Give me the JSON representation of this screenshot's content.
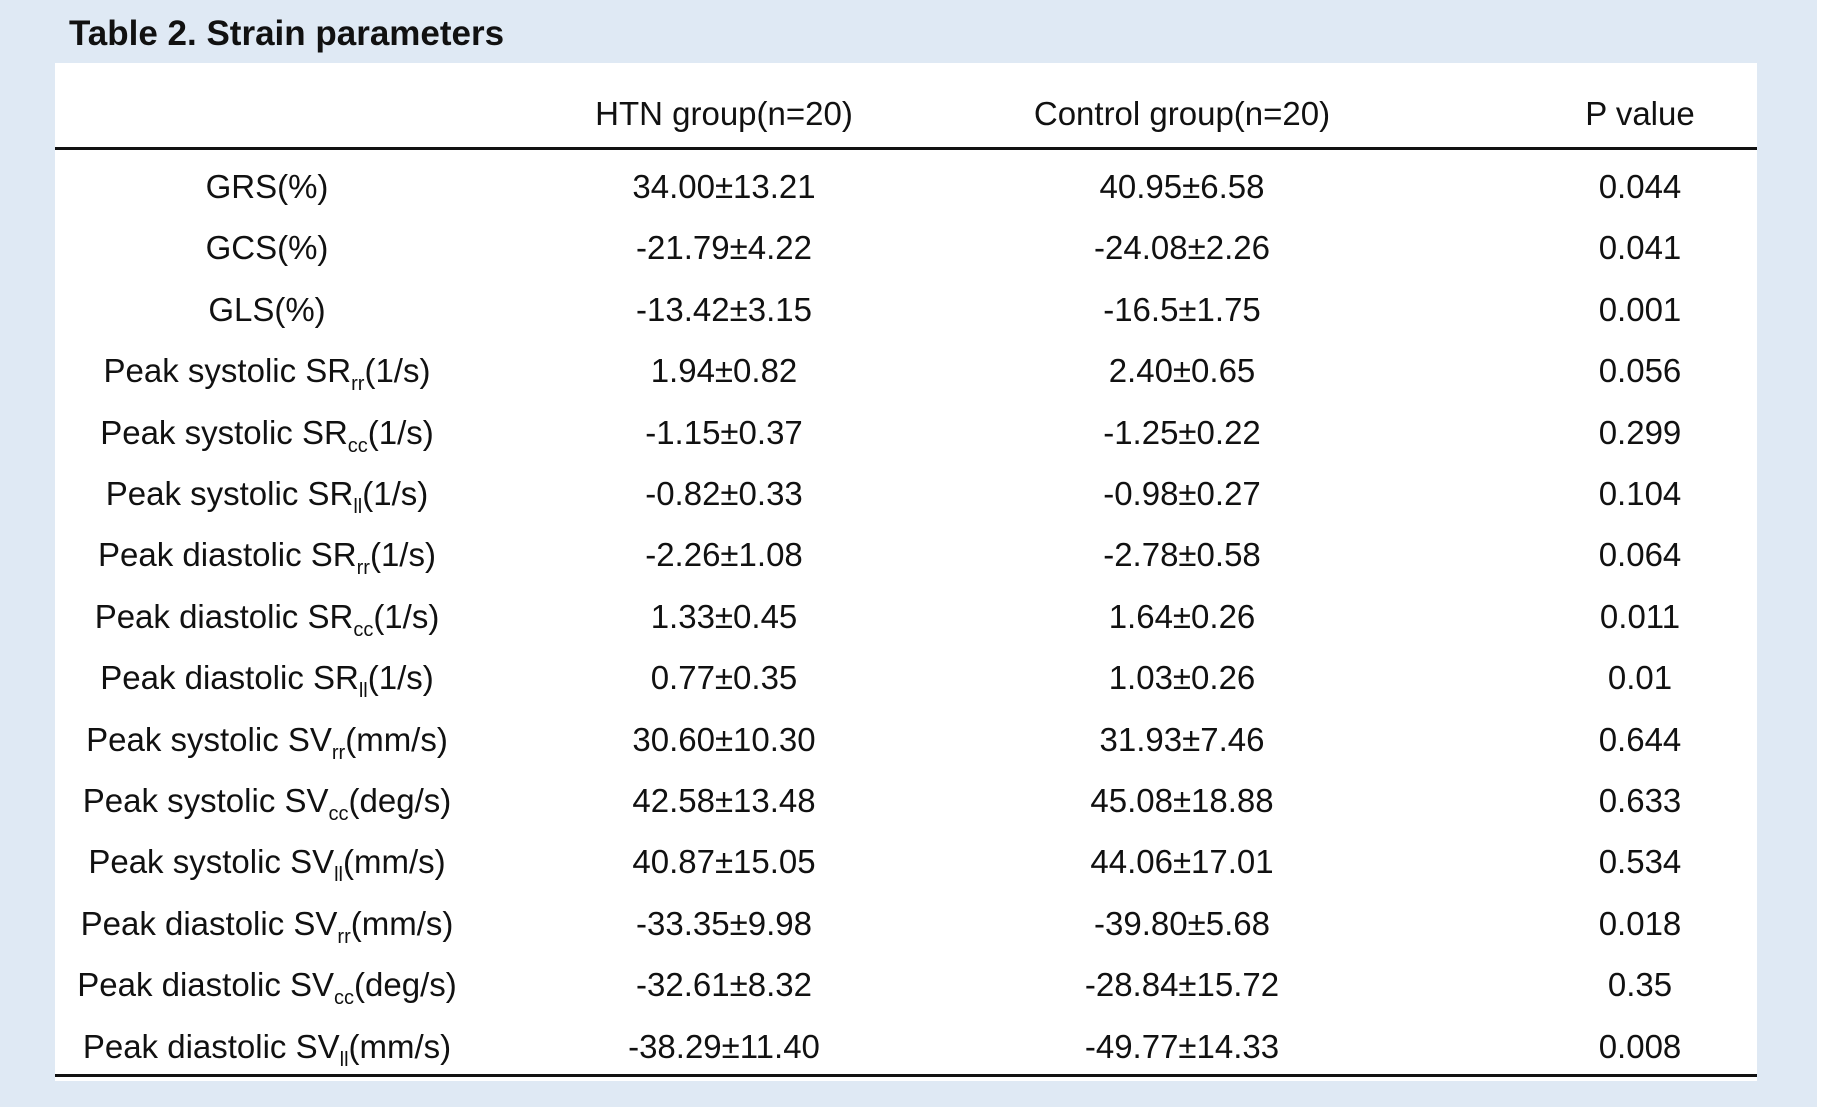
{
  "title": "Table 2. Strain parameters",
  "columns": [
    "",
    "HTN group(n=20)",
    "Control group(n=20)",
    "P value"
  ],
  "rows": [
    {
      "label": {
        "base": "GRS(%)",
        "sub": "",
        "unit": ""
      },
      "htn": "34.00±13.21",
      "control": "40.95±6.58",
      "p": "0.044"
    },
    {
      "label": {
        "base": "GCS(%)",
        "sub": "",
        "unit": ""
      },
      "htn": "-21.79±4.22",
      "control": "-24.08±2.26",
      "p": "0.041"
    },
    {
      "label": {
        "base": "GLS(%)",
        "sub": "",
        "unit": ""
      },
      "htn": "-13.42±3.15",
      "control": "-16.5±1.75",
      "p": "0.001"
    },
    {
      "label": {
        "base": "Peak systolic SR",
        "sub": "rr",
        "unit": "(1/s)"
      },
      "htn": "1.94±0.82",
      "control": "2.40±0.65",
      "p": "0.056"
    },
    {
      "label": {
        "base": "Peak systolic SR",
        "sub": "cc",
        "unit": "(1/s)"
      },
      "htn": "-1.15±0.37",
      "control": "-1.25±0.22",
      "p": "0.299"
    },
    {
      "label": {
        "base": "Peak systolic SR",
        "sub": "ll",
        "unit": "(1/s)"
      },
      "htn": "-0.82±0.33",
      "control": "-0.98±0.27",
      "p": "0.104"
    },
    {
      "label": {
        "base": "Peak diastolic SR",
        "sub": "rr",
        "unit": "(1/s)"
      },
      "htn": "-2.26±1.08",
      "control": "-2.78±0.58",
      "p": "0.064"
    },
    {
      "label": {
        "base": "Peak diastolic SR",
        "sub": "cc",
        "unit": "(1/s)"
      },
      "htn": "1.33±0.45",
      "control": "1.64±0.26",
      "p": "0.011"
    },
    {
      "label": {
        "base": "Peak diastolic SR",
        "sub": "ll",
        "unit": "(1/s)"
      },
      "htn": "0.77±0.35",
      "control": "1.03±0.26",
      "p": "0.01"
    },
    {
      "label": {
        "base": "Peak systolic SV",
        "sub": "rr",
        "unit": "(mm/s)"
      },
      "htn": "30.60±10.30",
      "control": "31.93±7.46",
      "p": "0.644"
    },
    {
      "label": {
        "base": "Peak systolic SV",
        "sub": "cc",
        "unit": "(deg/s)"
      },
      "htn": "42.58±13.48",
      "control": "45.08±18.88",
      "p": "0.633"
    },
    {
      "label": {
        "base": "Peak systolic SV",
        "sub": "ll",
        "unit": "(mm/s)"
      },
      "htn": "40.87±15.05",
      "control": "44.06±17.01",
      "p": "0.534"
    },
    {
      "label": {
        "base": "Peak diastolic SV",
        "sub": "rr",
        "unit": "(mm/s)"
      },
      "htn": "-33.35±9.98",
      "control": "-39.80±5.68",
      "p": "0.018"
    },
    {
      "label": {
        "base": "Peak diastolic SV",
        "sub": "cc",
        "unit": "(deg/s)"
      },
      "htn": "-32.61±8.32",
      "control": "-28.84±15.72",
      "p": "0.35"
    },
    {
      "label": {
        "base": "Peak diastolic SV",
        "sub": "ll",
        "unit": "(mm/s)"
      },
      "htn": "-38.29±11.40",
      "control": "-49.77±14.33",
      "p": "0.008"
    }
  ]
}
